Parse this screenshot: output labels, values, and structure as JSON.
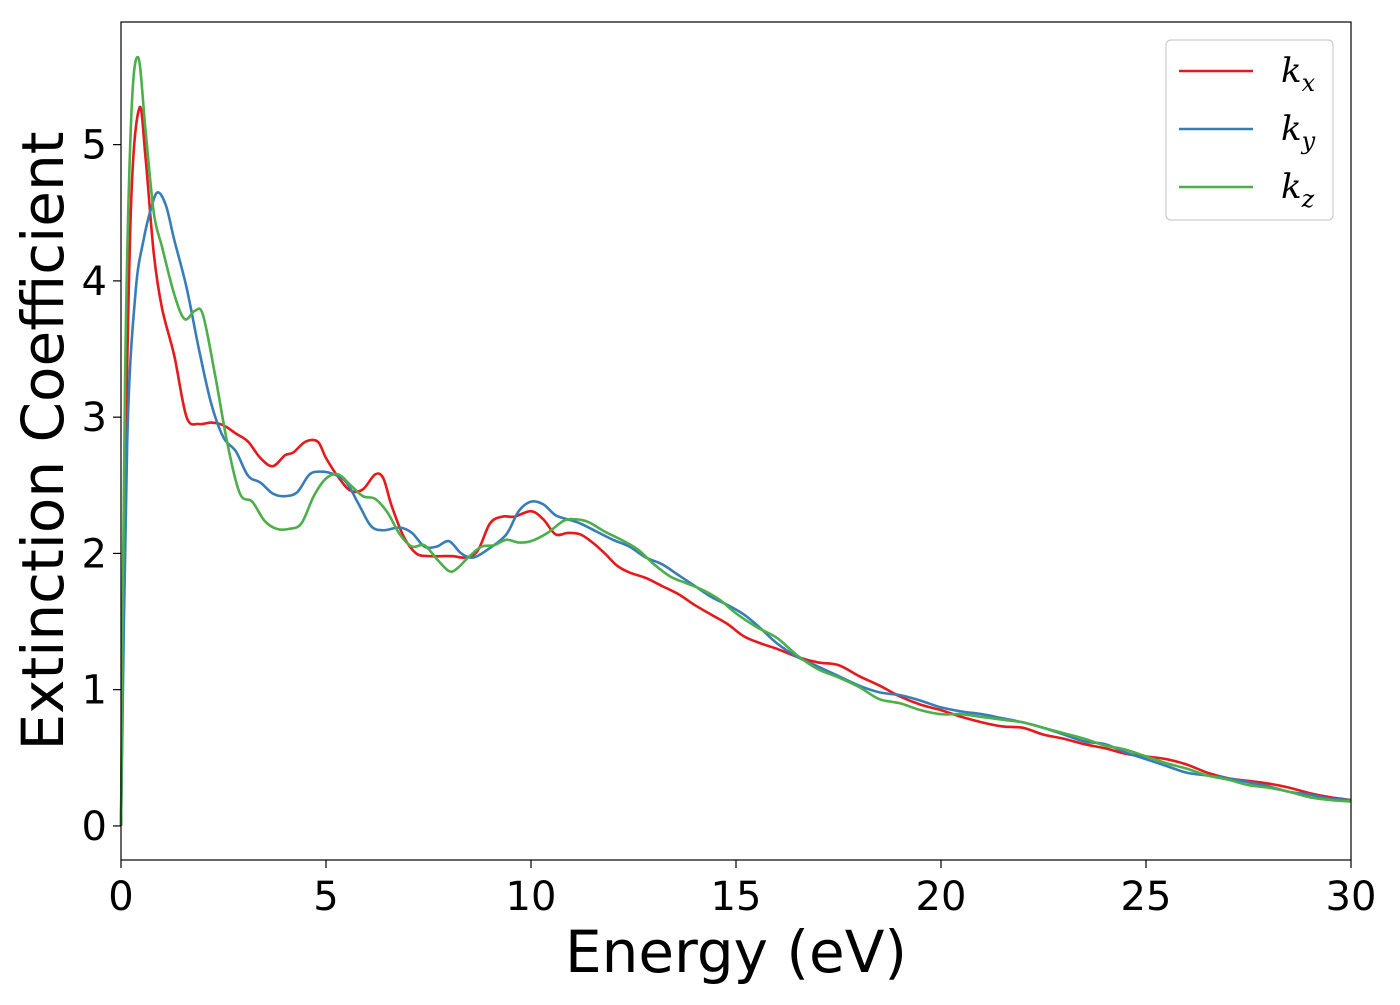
{
  "chart_data": {
    "type": "line",
    "title": "",
    "xlabel": "Energy (eV)",
    "ylabel": "Extinction Coefficient",
    "xlim": [
      0,
      30
    ],
    "ylim": [
      -0.25,
      5.9
    ],
    "xticks": [
      0,
      5,
      10,
      15,
      20,
      25,
      30
    ],
    "yticks": [
      0,
      1,
      2,
      3,
      4,
      5
    ],
    "xtick_labels": [
      "0",
      "5",
      "10",
      "15",
      "20",
      "25",
      "30"
    ],
    "ytick_labels": [
      "0",
      "1",
      "2",
      "3",
      "4",
      "5"
    ],
    "grid": false,
    "legend_position": "top-right",
    "series": [
      {
        "name": "k_x",
        "label_base": "k",
        "label_sub": "x",
        "color": "#e41a1c",
        "x": [
          0,
          0.1,
          0.25,
          0.45,
          0.6,
          0.8,
          1.0,
          1.3,
          1.6,
          1.9,
          2.2,
          2.5,
          2.8,
          3.1,
          3.4,
          3.7,
          4.0,
          4.2,
          4.5,
          4.8,
          5.0,
          5.3,
          5.6,
          5.9,
          6.2,
          6.4,
          6.6,
          6.9,
          7.2,
          7.5,
          7.8,
          8.1,
          8.4,
          8.7,
          9.0,
          9.3,
          9.6,
          10.0,
          10.3,
          10.6,
          10.9,
          11.2,
          11.5,
          11.8,
          12.1,
          12.4,
          12.8,
          13.2,
          13.6,
          14.0,
          14.4,
          14.8,
          15.2,
          15.6,
          16.0,
          16.5,
          17.0,
          17.5,
          18.0,
          18.5,
          19.0,
          19.5,
          20.0,
          20.5,
          21.0,
          21.5,
          22.0,
          22.5,
          23.0,
          23.5,
          24.0,
          24.5,
          25.0,
          25.5,
          26.0,
          26.5,
          27.0,
          27.5,
          28.0,
          28.5,
          29.0,
          29.5,
          30.0
        ],
        "y": [
          0.0,
          2.5,
          4.6,
          5.27,
          4.9,
          4.2,
          3.8,
          3.45,
          3.0,
          2.95,
          2.96,
          2.94,
          2.88,
          2.82,
          2.7,
          2.64,
          2.72,
          2.74,
          2.82,
          2.82,
          2.7,
          2.56,
          2.46,
          2.47,
          2.58,
          2.55,
          2.35,
          2.12,
          2.0,
          1.98,
          1.98,
          1.98,
          1.97,
          2.02,
          2.22,
          2.27,
          2.27,
          2.31,
          2.25,
          2.14,
          2.15,
          2.14,
          2.08,
          2.0,
          1.91,
          1.86,
          1.82,
          1.76,
          1.7,
          1.62,
          1.55,
          1.48,
          1.39,
          1.34,
          1.3,
          1.24,
          1.2,
          1.18,
          1.1,
          1.03,
          0.95,
          0.89,
          0.85,
          0.8,
          0.76,
          0.73,
          0.72,
          0.67,
          0.64,
          0.6,
          0.57,
          0.53,
          0.51,
          0.49,
          0.45,
          0.39,
          0.35,
          0.33,
          0.31,
          0.28,
          0.24,
          0.21,
          0.19
        ]
      },
      {
        "name": "k_y",
        "label_base": "k",
        "label_sub": "y",
        "color": "#377eb8",
        "x": [
          0,
          0.15,
          0.35,
          0.55,
          0.75,
          0.9,
          1.1,
          1.3,
          1.6,
          1.9,
          2.2,
          2.5,
          2.8,
          3.1,
          3.4,
          3.7,
          4.0,
          4.3,
          4.6,
          4.9,
          5.2,
          5.5,
          5.8,
          6.1,
          6.4,
          6.8,
          7.1,
          7.4,
          7.7,
          8.0,
          8.3,
          8.6,
          9.0,
          9.4,
          9.7,
          10.0,
          10.3,
          10.6,
          10.9,
          11.2,
          11.6,
          12.0,
          12.4,
          12.8,
          13.2,
          13.6,
          14.0,
          14.4,
          14.8,
          15.2,
          15.6,
          16.0,
          16.5,
          17.0,
          17.5,
          18.0,
          18.5,
          19.0,
          19.5,
          20.0,
          20.5,
          21.0,
          21.5,
          22.0,
          22.5,
          23.0,
          23.5,
          24.0,
          24.5,
          25.0,
          25.5,
          26.0,
          26.5,
          27.0,
          27.5,
          28.0,
          28.5,
          29.0,
          29.5,
          30.0
        ],
        "y": [
          0.0,
          2.8,
          3.9,
          4.3,
          4.55,
          4.65,
          4.55,
          4.3,
          3.95,
          3.5,
          3.1,
          2.85,
          2.75,
          2.57,
          2.52,
          2.44,
          2.42,
          2.45,
          2.58,
          2.6,
          2.58,
          2.52,
          2.36,
          2.2,
          2.17,
          2.19,
          2.15,
          2.05,
          2.05,
          2.09,
          2.0,
          1.97,
          2.04,
          2.14,
          2.31,
          2.38,
          2.36,
          2.28,
          2.25,
          2.22,
          2.16,
          2.1,
          2.05,
          1.97,
          1.92,
          1.84,
          1.76,
          1.68,
          1.62,
          1.55,
          1.45,
          1.34,
          1.24,
          1.17,
          1.1,
          1.03,
          0.98,
          0.96,
          0.92,
          0.87,
          0.84,
          0.82,
          0.79,
          0.76,
          0.72,
          0.67,
          0.62,
          0.6,
          0.54,
          0.49,
          0.44,
          0.39,
          0.37,
          0.35,
          0.32,
          0.29,
          0.25,
          0.23,
          0.2,
          0.19
        ]
      },
      {
        "name": "k_z",
        "label_base": "k",
        "label_sub": "z",
        "color": "#4daf4a",
        "x": [
          0,
          0.1,
          0.25,
          0.42,
          0.6,
          0.8,
          1.0,
          1.3,
          1.55,
          1.8,
          2.0,
          2.3,
          2.6,
          2.9,
          3.2,
          3.5,
          3.8,
          4.1,
          4.4,
          4.7,
          5.0,
          5.3,
          5.6,
          5.9,
          6.2,
          6.5,
          6.8,
          7.1,
          7.4,
          7.7,
          8.0,
          8.2,
          8.5,
          8.8,
          9.1,
          9.4,
          9.7,
          10.0,
          10.4,
          10.8,
          11.1,
          11.4,
          11.8,
          12.2,
          12.6,
          13.0,
          13.4,
          13.8,
          14.2,
          14.6,
          15.0,
          15.5,
          16.0,
          16.5,
          17.0,
          17.5,
          18.0,
          18.5,
          19.0,
          19.5,
          20.0,
          20.5,
          21.0,
          21.5,
          22.0,
          22.5,
          23.0,
          23.5,
          24.0,
          24.5,
          25.0,
          25.5,
          26.0,
          26.5,
          27.0,
          27.5,
          28.0,
          28.5,
          29.0,
          29.5,
          30.0
        ],
        "y": [
          0.0,
          3.3,
          5.2,
          5.64,
          5.1,
          4.5,
          4.25,
          3.9,
          3.72,
          3.78,
          3.75,
          3.3,
          2.8,
          2.44,
          2.38,
          2.24,
          2.18,
          2.18,
          2.22,
          2.42,
          2.55,
          2.58,
          2.5,
          2.42,
          2.4,
          2.3,
          2.14,
          2.05,
          2.06,
          1.96,
          1.87,
          1.89,
          1.98,
          2.05,
          2.06,
          2.1,
          2.08,
          2.09,
          2.15,
          2.24,
          2.25,
          2.23,
          2.16,
          2.1,
          2.03,
          1.92,
          1.83,
          1.78,
          1.73,
          1.66,
          1.56,
          1.46,
          1.38,
          1.25,
          1.15,
          1.09,
          1.02,
          0.93,
          0.9,
          0.85,
          0.82,
          0.82,
          0.8,
          0.78,
          0.76,
          0.72,
          0.68,
          0.64,
          0.59,
          0.56,
          0.51,
          0.46,
          0.42,
          0.37,
          0.34,
          0.3,
          0.28,
          0.25,
          0.21,
          0.19,
          0.18
        ]
      }
    ]
  }
}
